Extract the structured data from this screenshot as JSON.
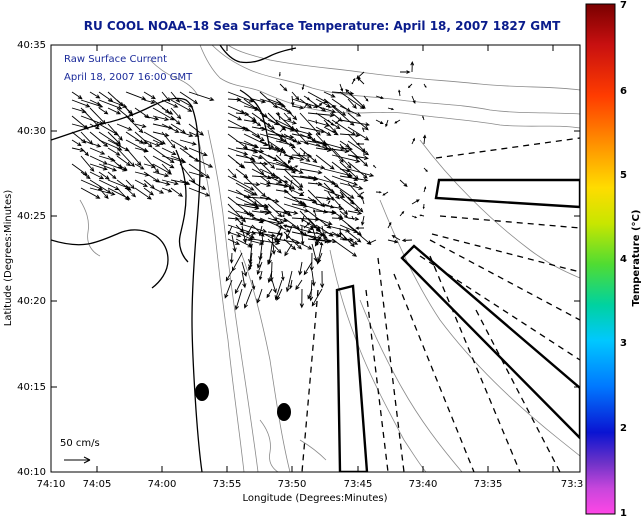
{
  "title": "RU COOL  NOAA–18  Sea Surface Temperature:  April 18, 2007 1827 GMT",
  "legend": {
    "line1": "Raw Surface Current",
    "line2": "April 18, 2007 16:00 GMT",
    "scale_label": "50 cm/s"
  },
  "axes": {
    "xlabel": "Longitude (Degrees:Minutes)",
    "ylabel": "Latitude (Degrees:Minutes)",
    "x_ticks": [
      "74:10",
      "74:05",
      "74:00",
      "73:55",
      "73:50",
      "73:45",
      "73:40",
      "73:35",
      "73:3"
    ],
    "y_ticks": [
      "40:35",
      "40:30",
      "40:25",
      "40:20",
      "40:15",
      "40:10"
    ]
  },
  "colorbar": {
    "label": "Temperature (°C)",
    "ticks": [
      "7",
      "6",
      "5",
      "4",
      "3",
      "2",
      "1"
    ],
    "colors": [
      "#7a0000",
      "#c81010",
      "#ff3c00",
      "#ff9600",
      "#ffdc00",
      "#c8e600",
      "#50dc32",
      "#00d2a0",
      "#00c8ff",
      "#0078ff",
      "#0a14d2",
      "#6e32c8",
      "#c846dc",
      "#ff46e6"
    ]
  },
  "map": {
    "land_color": "#ffffff",
    "contour_color": "#8a8a8a",
    "vector_color": "#000000",
    "marker_color": "#000000"
  }
}
